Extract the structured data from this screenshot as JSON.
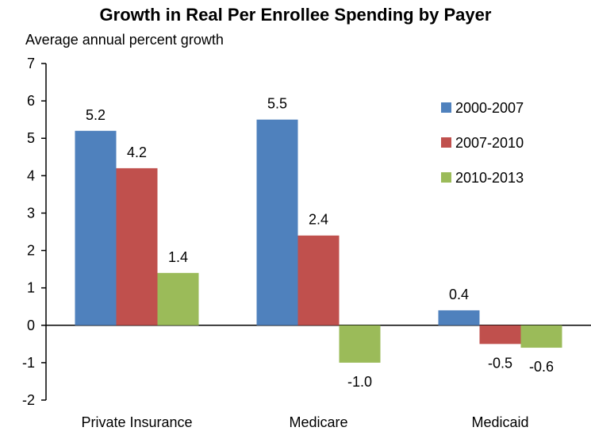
{
  "chart_data": {
    "type": "bar",
    "title": "Growth in Real Per Enrollee Spending by Payer",
    "subtitle": "Average annual percent growth",
    "xlabel": "",
    "ylabel": "",
    "categories": [
      "Private Insurance",
      "Medicare",
      "Medicaid"
    ],
    "series": [
      {
        "name": "2000-2007",
        "color": "#4F81BD",
        "values": [
          5.2,
          5.5,
          0.4
        ],
        "labels": [
          "5.2",
          "5.5",
          "0.4"
        ]
      },
      {
        "name": "2007-2010",
        "color": "#C0504D",
        "values": [
          4.2,
          2.4,
          -0.5
        ],
        "labels": [
          "4.2",
          "2.4",
          "-0.5"
        ]
      },
      {
        "name": "2010-2013",
        "color": "#9BBB59",
        "values": [
          1.4,
          -1.0,
          -0.6
        ],
        "labels": [
          "1.4",
          "-1.0",
          "-0.6"
        ]
      }
    ],
    "ylim": [
      -2,
      7
    ],
    "yticks": [
      "-2",
      "-1",
      "0",
      "1",
      "2",
      "3",
      "4",
      "5",
      "6",
      "7"
    ],
    "grid": false,
    "legend_position": "top-right"
  }
}
